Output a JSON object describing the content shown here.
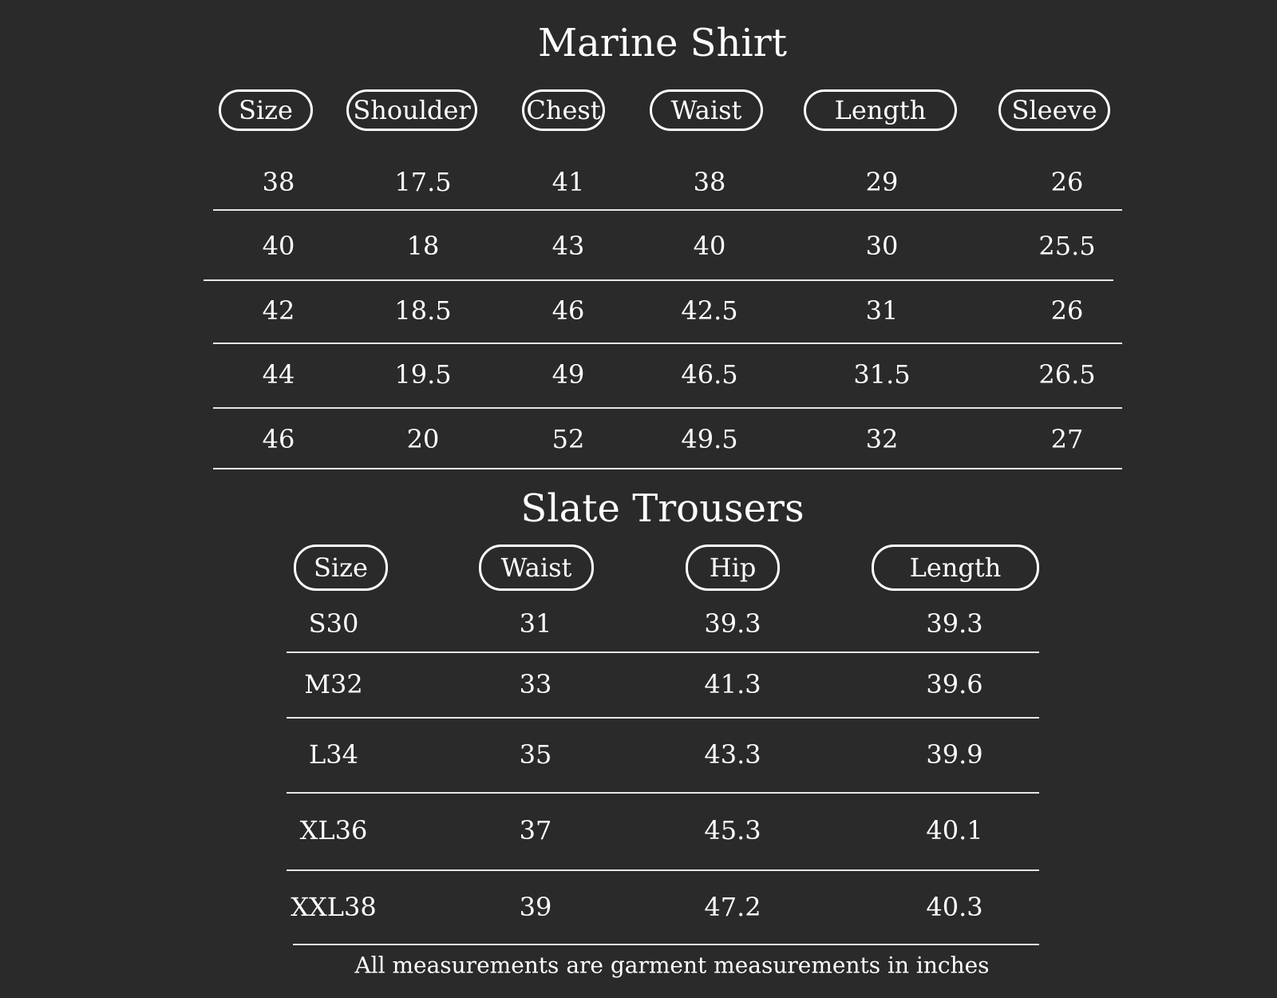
{
  "shirt": {
    "title": "Marine Shirt",
    "headers": [
      "Size",
      "Shoulder",
      "Chest",
      "Waist",
      "Length",
      "Sleeve"
    ],
    "rows": [
      [
        "38",
        "17.5",
        "41",
        "38",
        "29",
        "26"
      ],
      [
        "40",
        "18",
        "43",
        "40",
        "30",
        "25.5"
      ],
      [
        "42",
        "18.5",
        "46",
        "42.5",
        "31",
        "26"
      ],
      [
        "44",
        "19.5",
        "49",
        "46.5",
        "31.5",
        "26.5"
      ],
      [
        "46",
        "20",
        "52",
        "49.5",
        "32",
        "27"
      ]
    ]
  },
  "trousers": {
    "title": "Slate Trousers",
    "headers": [
      "Size",
      "Waist",
      "Hip",
      "Length"
    ],
    "rows": [
      [
        "S30",
        "31",
        "39.3",
        "39.3"
      ],
      [
        "M32",
        "33",
        "41.3",
        "39.6"
      ],
      [
        "L34",
        "35",
        "43.3",
        "39.9"
      ],
      [
        "XL36",
        "37",
        "45.3",
        "40.1"
      ],
      [
        "XXL38",
        "39",
        "47.2",
        "40.3"
      ]
    ]
  },
  "footnote": "All measurements are garment measurements in inches",
  "colors": {
    "background": "#2a2a2a",
    "text": "#ffffff"
  }
}
